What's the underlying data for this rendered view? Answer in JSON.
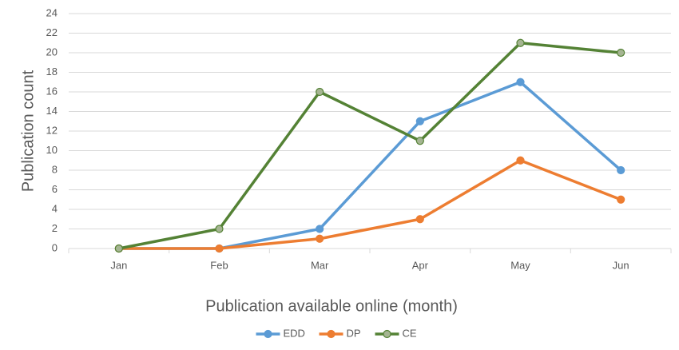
{
  "chart_data": {
    "type": "line",
    "x_label": "Publication available online (month)",
    "y_label": "Publication count",
    "categories": [
      "Jan",
      "Feb",
      "Mar",
      "Apr",
      "May",
      "Jun"
    ],
    "series": [
      {
        "name": "EDD",
        "color": "#5b9bd5",
        "marker_color": "#5b9bd5",
        "values": [
          0,
          0,
          2,
          13,
          17,
          8
        ]
      },
      {
        "name": "DP",
        "color": "#ed7d31",
        "marker_color": "#ed7d31",
        "values": [
          0,
          0,
          1,
          3,
          9,
          5
        ]
      },
      {
        "name": "CE",
        "color": "#548235",
        "marker_color": "#a5b592",
        "values": [
          0,
          2,
          16,
          11,
          21,
          20
        ]
      }
    ],
    "ylim": [
      0,
      24
    ],
    "yticks": [
      0,
      2,
      4,
      6,
      8,
      10,
      12,
      14,
      16,
      18,
      20,
      22,
      24
    ],
    "grid": true,
    "legend": "bottom"
  }
}
